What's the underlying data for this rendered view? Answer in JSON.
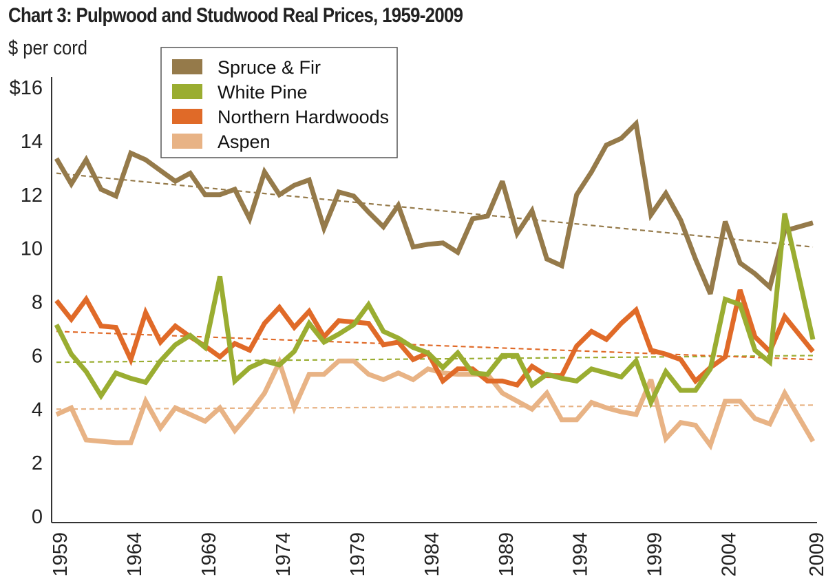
{
  "chart_data": {
    "type": "line",
    "title": "Chart 3: Pulpwood and Studwood Real Prices, 1959-2009",
    "ylabel": "$ per cord",
    "xlabel": "",
    "ylim": [
      0,
      16
    ],
    "y_ticks": [
      0,
      2,
      4,
      6,
      8,
      10,
      12,
      14,
      16
    ],
    "y_tick_labels": [
      "0",
      "2",
      "4",
      "6",
      "8",
      "10",
      "12",
      "14",
      "$16"
    ],
    "x_tick_labels": [
      "1959",
      "1964",
      "1969",
      "1974",
      "1979",
      "1984",
      "1989",
      "1994",
      "1999",
      "2004",
      "2009"
    ],
    "grid": false,
    "legend_position": "top-left",
    "x": [
      1959,
      1960,
      1961,
      1962,
      1963,
      1964,
      1965,
      1966,
      1967,
      1968,
      1969,
      1970,
      1971,
      1972,
      1973,
      1974,
      1975,
      1976,
      1977,
      1978,
      1979,
      1980,
      1981,
      1982,
      1983,
      1984,
      1985,
      1986,
      1987,
      1988,
      1989,
      1990,
      1991,
      1992,
      1993,
      1994,
      1995,
      1996,
      1997,
      1998,
      1999,
      2000,
      2001,
      2002,
      2003,
      2004,
      2005,
      2006,
      2007,
      2008,
      2009
    ],
    "series": [
      {
        "name": "Spruce & Fir",
        "color": "#957a4a",
        "values": [
          13.35,
          12.4,
          13.3,
          12.2,
          11.95,
          13.55,
          13.3,
          12.9,
          12.5,
          12.8,
          12.0,
          12.0,
          12.2,
          11.1,
          12.85,
          12.0,
          12.35,
          12.55,
          10.75,
          12.1,
          11.95,
          11.35,
          10.8,
          11.6,
          10.05,
          10.15,
          10.2,
          9.85,
          11.1,
          11.2,
          12.5,
          10.55,
          11.4,
          9.6,
          9.35,
          12.0,
          12.85,
          13.85,
          14.1,
          14.65,
          11.25,
          12.05,
          11.05,
          9.6,
          8.3,
          11.0,
          9.45,
          9.05,
          8.55,
          10.65,
          10.95
        ],
        "trend": [
          12.8,
          10.05
        ]
      },
      {
        "name": "White Pine",
        "color": "#9aad31",
        "values": [
          7.15,
          6.05,
          5.4,
          4.5,
          5.35,
          5.15,
          5.0,
          5.8,
          6.4,
          6.75,
          6.3,
          8.95,
          5.05,
          5.55,
          5.8,
          5.65,
          6.15,
          7.2,
          6.5,
          6.8,
          7.15,
          7.9,
          6.9,
          6.65,
          6.3,
          6.1,
          5.55,
          6.1,
          5.35,
          5.3,
          6.0,
          6.0,
          4.9,
          5.3,
          5.15,
          5.05,
          5.5,
          5.35,
          5.2,
          5.8,
          4.25,
          5.4,
          4.7,
          4.7,
          5.5,
          8.1,
          7.9,
          6.2,
          5.75,
          11.3,
          6.6
        ],
        "trend": [
          5.75,
          6.0
        ]
      },
      {
        "name": "Northern Hardwoods",
        "color": "#e06a28",
        "values": [
          8.05,
          7.35,
          8.1,
          7.1,
          7.05,
          5.85,
          7.6,
          6.5,
          7.1,
          6.7,
          6.35,
          5.95,
          6.45,
          6.2,
          7.2,
          7.8,
          7.05,
          7.65,
          6.7,
          7.3,
          7.25,
          7.2,
          6.4,
          6.5,
          5.85,
          6.1,
          5.05,
          5.5,
          5.5,
          5.05,
          5.05,
          4.9,
          5.6,
          5.25,
          5.25,
          6.35,
          6.9,
          6.6,
          7.2,
          7.7,
          6.2,
          6.05,
          5.85,
          5.05,
          5.55,
          5.95,
          8.45,
          6.7,
          6.15,
          7.45,
          6.15
        ],
        "trend": [
          6.9,
          5.85
        ]
      },
      {
        "name": "Aspen",
        "color": "#e8b385",
        "values": [
          3.8,
          4.05,
          2.85,
          2.8,
          2.75,
          2.75,
          4.3,
          3.3,
          4.05,
          3.8,
          3.55,
          4.05,
          3.2,
          3.85,
          4.6,
          5.75,
          4.05,
          5.3,
          5.3,
          5.8,
          5.8,
          5.3,
          5.1,
          5.35,
          5.1,
          5.5,
          5.35,
          5.3,
          5.3,
          5.3,
          4.6,
          4.3,
          4.0,
          4.6,
          3.6,
          3.6,
          4.25,
          4.05,
          3.9,
          3.8,
          5.1,
          2.9,
          3.5,
          3.4,
          2.65,
          4.3,
          4.3,
          3.65,
          3.45,
          4.6,
          2.8
        ],
        "trend": [
          4.0,
          4.15
        ]
      }
    ]
  }
}
